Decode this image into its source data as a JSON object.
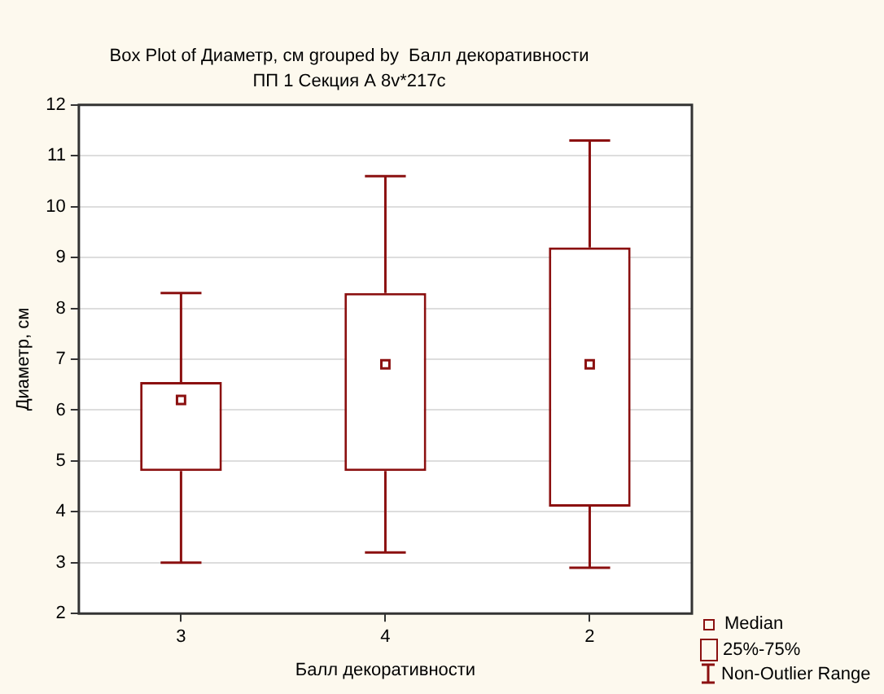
{
  "chart_data": {
    "type": "box",
    "title": "Box Plot of Диаметр, см grouped by  Балл декоративности",
    "subtitle": "ПП 1 Секция А 8v*217c",
    "xlabel": "Балл декоративности",
    "ylabel": "Диаметр, см",
    "categories": [
      "3",
      "4",
      "2"
    ],
    "boxes": [
      {
        "low": 3.0,
        "q1": 4.8,
        "median": 6.2,
        "q3": 6.55,
        "high": 8.3
      },
      {
        "low": 3.2,
        "q1": 4.8,
        "median": 6.9,
        "q3": 8.3,
        "high": 10.6
      },
      {
        "low": 2.9,
        "q1": 4.1,
        "median": 6.9,
        "q3": 9.2,
        "high": 11.3
      }
    ],
    "color": "#8b1010",
    "ylim": [
      2,
      12
    ],
    "yticks": [
      2,
      3,
      4,
      5,
      6,
      7,
      8,
      9,
      10,
      11,
      12
    ],
    "grid": "y",
    "marker": "square",
    "annotations": [
      "Median",
      "25%-75%",
      "Non-Outlier Range"
    ]
  }
}
